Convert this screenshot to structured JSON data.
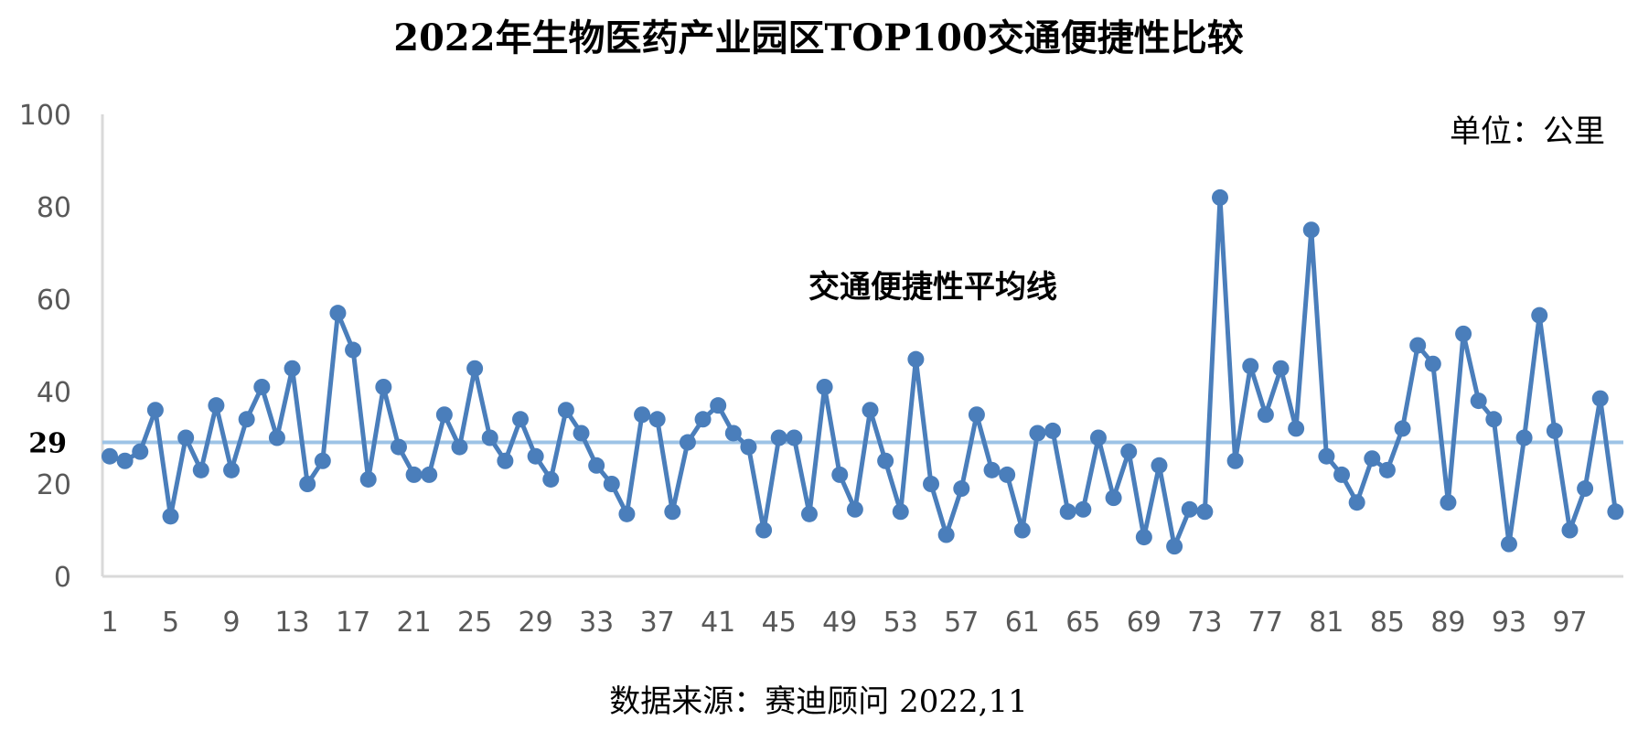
{
  "chart_data": {
    "type": "line",
    "title": "2022年生物医药产业园区TOP100交通便捷性比较",
    "unit_label": "单位：公里",
    "source": "数据来源：赛迪顾问 2022,11",
    "avg_label": "交通便捷性平均线",
    "avg_value": 29,
    "avg_tick_label": "29",
    "ylim": [
      0,
      100
    ],
    "yticks": [
      0,
      20,
      40,
      60,
      80,
      100
    ],
    "xtick_labels": [
      "1",
      "5",
      "9",
      "13",
      "17",
      "21",
      "25",
      "29",
      "33",
      "37",
      "41",
      "45",
      "49",
      "53",
      "57",
      "61",
      "65",
      "69",
      "73",
      "77",
      "81",
      "85",
      "89",
      "93",
      "97"
    ],
    "x": [
      1,
      2,
      3,
      4,
      5,
      6,
      7,
      8,
      9,
      10,
      11,
      12,
      13,
      14,
      15,
      16,
      17,
      18,
      19,
      20,
      21,
      22,
      23,
      24,
      25,
      26,
      27,
      28,
      29,
      30,
      31,
      32,
      33,
      34,
      35,
      36,
      37,
      38,
      39,
      40,
      41,
      42,
      43,
      44,
      45,
      46,
      47,
      48,
      49,
      50,
      51,
      52,
      53,
      54,
      55,
      56,
      57,
      58,
      59,
      60,
      61,
      62,
      63,
      64,
      65,
      66,
      67,
      68,
      69,
      70,
      71,
      72,
      73,
      74,
      75,
      76,
      77,
      78,
      79,
      80,
      81,
      82,
      83,
      84,
      85,
      86,
      87,
      88,
      89,
      90,
      91,
      92,
      93,
      94,
      95,
      96,
      97,
      98,
      99,
      100
    ],
    "series": [
      {
        "name": "",
        "values": [
          26,
          25,
          27,
          36,
          13,
          30,
          23,
          37,
          23,
          34,
          41,
          30,
          45,
          20,
          25,
          57,
          49,
          21,
          41,
          28,
          22,
          22,
          35,
          28,
          45,
          30,
          25,
          34,
          26,
          21,
          36,
          31,
          24,
          20,
          13.5,
          35,
          34,
          14,
          29,
          34,
          37,
          31,
          28,
          10,
          30,
          30,
          13.5,
          41,
          22,
          14.5,
          36,
          25,
          14,
          47,
          20,
          9,
          19,
          35,
          23,
          22,
          10,
          31,
          31.5,
          14,
          14.5,
          30,
          17,
          27,
          8.5,
          24,
          6.5,
          14.5,
          14,
          82,
          25,
          45.5,
          35,
          45,
          32,
          75,
          26,
          22,
          16,
          25.5,
          23,
          32,
          50,
          46,
          16,
          52.5,
          38,
          34,
          7,
          30,
          56.5,
          31.5,
          10,
          19,
          38.5,
          14
        ]
      }
    ],
    "colors": {
      "line": "#4a7ebb",
      "marker": "#4a7ebb",
      "avg_line": "#9dc3e6",
      "axis": "#d9d9d9"
    }
  }
}
